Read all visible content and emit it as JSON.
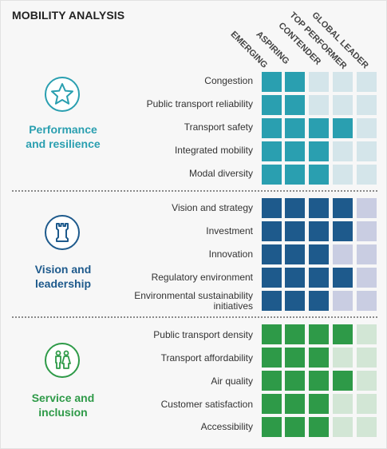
{
  "title": "MOBILITY ANALYSIS",
  "levels": [
    "EMERGING",
    "ASPIRING",
    "CONTENDER",
    "TOP PERFORMER",
    "GLOBAL LEADER"
  ],
  "categories": [
    {
      "label": "Performance\nand resilience",
      "icon": "star-icon",
      "color_on": "#2a9fb0",
      "color_off": "#d4e5ea",
      "metrics": [
        {
          "label": "Congestion",
          "level": 2
        },
        {
          "label": "Public transport reliability",
          "level": 2
        },
        {
          "label": "Transport safety",
          "level": 4
        },
        {
          "label": "Integrated mobility",
          "level": 3
        },
        {
          "label": "Modal diversity",
          "level": 3
        }
      ]
    },
    {
      "label": "Vision and\nleadership",
      "icon": "chess-rook-icon",
      "color_on": "#1e5a8c",
      "color_off": "#c9cde2",
      "metrics": [
        {
          "label": "Vision and strategy",
          "level": 4
        },
        {
          "label": "Investment",
          "level": 4
        },
        {
          "label": "Innovation",
          "level": 3
        },
        {
          "label": "Regulatory environment",
          "level": 4
        },
        {
          "label": "Environmental sustainability\ninitiatives",
          "level": 3
        }
      ]
    },
    {
      "label": "Service and\ninclusion",
      "icon": "people-icon",
      "color_on": "#2e9a48",
      "color_off": "#d2e6d5",
      "metrics": [
        {
          "label": "Public transport density",
          "level": 4
        },
        {
          "label": "Transport affordability",
          "level": 3
        },
        {
          "label": "Air quality",
          "level": 4
        },
        {
          "label": "Customer satisfaction",
          "level": 3
        },
        {
          "label": "Accessibility",
          "level": 3
        }
      ]
    }
  ],
  "chart_data": {
    "type": "heatmap",
    "title": "MOBILITY ANALYSIS",
    "columns": [
      "EMERGING",
      "ASPIRING",
      "CONTENDER",
      "TOP PERFORMER",
      "GLOBAL LEADER"
    ],
    "rows": [
      {
        "group": "Performance and resilience",
        "metric": "Congestion",
        "level": 2
      },
      {
        "group": "Performance and resilience",
        "metric": "Public transport reliability",
        "level": 2
      },
      {
        "group": "Performance and resilience",
        "metric": "Transport safety",
        "level": 4
      },
      {
        "group": "Performance and resilience",
        "metric": "Integrated mobility",
        "level": 3
      },
      {
        "group": "Performance and resilience",
        "metric": "Modal diversity",
        "level": 3
      },
      {
        "group": "Vision and leadership",
        "metric": "Vision and strategy",
        "level": 4
      },
      {
        "group": "Vision and leadership",
        "metric": "Investment",
        "level": 4
      },
      {
        "group": "Vision and leadership",
        "metric": "Innovation",
        "level": 3
      },
      {
        "group": "Vision and leadership",
        "metric": "Regulatory environment",
        "level": 4
      },
      {
        "group": "Vision and leadership",
        "metric": "Environmental sustainability initiatives",
        "level": 3
      },
      {
        "group": "Service and inclusion",
        "metric": "Public transport density",
        "level": 4
      },
      {
        "group": "Service and inclusion",
        "metric": "Transport affordability",
        "level": 3
      },
      {
        "group": "Service and inclusion",
        "metric": "Air quality",
        "level": 4
      },
      {
        "group": "Service and inclusion",
        "metric": "Customer satisfaction",
        "level": 3
      },
      {
        "group": "Service and inclusion",
        "metric": "Accessibility",
        "level": 3
      }
    ]
  }
}
